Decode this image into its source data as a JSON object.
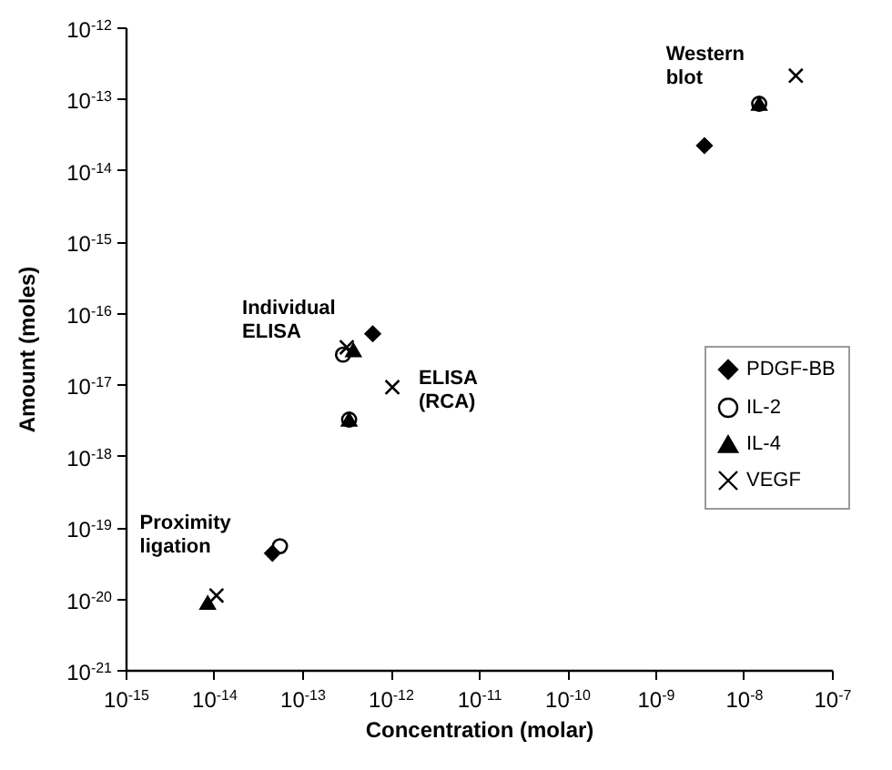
{
  "chart_data": {
    "type": "scatter",
    "xlabel": "Concentration (molar)",
    "ylabel": "Amount (moles)",
    "log": "xy",
    "grid": false,
    "legend": "right",
    "xlim": [
      1e-15,
      1e-07
    ],
    "ylim": [
      1e-21,
      1e-12
    ],
    "xticks": [
      {
        "value": 1e-15,
        "label": "10$^{-15}$"
      },
      {
        "value": 1e-14,
        "label": "10$^{-14}$"
      },
      {
        "value": 1e-13,
        "label": "10$^{-13}$"
      },
      {
        "value": 1e-12,
        "label": "10$^{-12}$"
      },
      {
        "value": 1e-11,
        "label": "10$^{-11}$"
      },
      {
        "value": 1e-10,
        "label": "10$^{-10}$"
      },
      {
        "value": 1e-09,
        "label": "10$^{-9}$"
      },
      {
        "value": 1e-08,
        "label": "10$^{-8}$"
      },
      {
        "value": 1e-07,
        "label": "10$^{-7}$"
      }
    ],
    "yticks": [
      {
        "value": 1e-21,
        "label": "10$^{-21}$"
      },
      {
        "value": 1e-20,
        "label": "10$^{-20}$"
      },
      {
        "value": 1e-19,
        "label": "10$^{-19}$"
      },
      {
        "value": 1e-18,
        "label": "10$^{-18}$"
      },
      {
        "value": 1e-17,
        "label": "10$^{-17}$"
      },
      {
        "value": 1e-16,
        "label": "10$^{-16}$"
      },
      {
        "value": 1e-15,
        "label": "10$^{-15}$"
      },
      {
        "value": 1e-14,
        "label": "10$^{-14}$"
      },
      {
        "value": 1e-13,
        "label": "10$^{-13}$"
      },
      {
        "value": 1e-12,
        "label": "10$^{-12}$"
      }
    ],
    "series": [
      {
        "name": "PDGF-BB",
        "color": "#000000",
        "marker": "diamond",
        "x": [
          4.6e-14,
          6.3e-13,
          3.6e-09
        ],
        "values": [
          4.3e-20,
          5.1e-17,
          2.2e-14
        ]
      },
      {
        "name": "IL-2",
        "color": "#000000",
        "marker": "circle",
        "x": [
          5.6e-14,
          2.9e-13,
          3.4e-13,
          1.5e-08
        ],
        "values": [
          5.4e-20,
          2.6e-17,
          3.2e-18,
          8.5e-14
        ]
      },
      {
        "name": "IL-4",
        "color": "#000000",
        "marker": "triangle",
        "x": [
          8.5e-15,
          3.8e-13,
          3.4e-13,
          1.5e-08
        ],
        "values": [
          8.7e-21,
          3e-17,
          3.2e-18,
          8.5e-14
        ]
      },
      {
        "name": "VEGF",
        "color": "#000000",
        "marker": "cross",
        "x": [
          1.07e-14,
          3.2e-13,
          1.05e-12,
          3.9e-08
        ],
        "values": [
          1.1e-20,
          3.3e-17,
          9.1e-18,
          2.1e-13
        ]
      }
    ],
    "annotations": [
      "Western blot",
      "Individual ELISA",
      "ELISA (RCA)",
      "Proximity ligation"
    ]
  }
}
